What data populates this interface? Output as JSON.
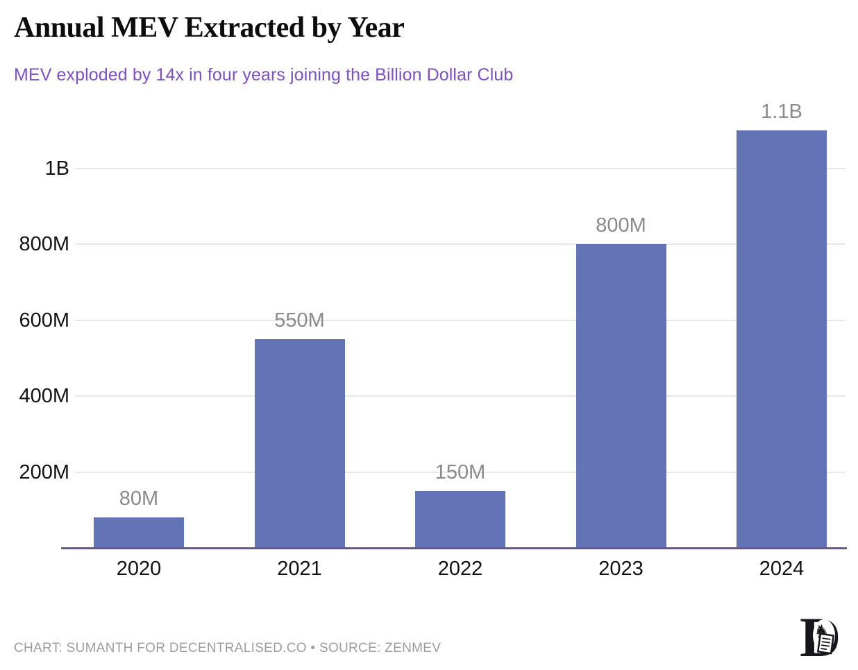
{
  "chart_data": {
    "type": "bar",
    "title": "Annual MEV Extracted by Year",
    "subtitle": "MEV exploded by 14x in four years joining the Billion Dollar Club",
    "categories": [
      "2020",
      "2021",
      "2022",
      "2023",
      "2024"
    ],
    "values": [
      80,
      550,
      150,
      800,
      1100
    ],
    "value_labels": [
      "80M",
      "550M",
      "150M",
      "800M",
      "1.1B"
    ],
    "values_unit_note": "values in millions (M), 1.1B = 1100M",
    "yticks": [
      {
        "value": 200,
        "label": "200M"
      },
      {
        "value": 400,
        "label": "400M"
      },
      {
        "value": 600,
        "label": "600M"
      },
      {
        "value": 800,
        "label": "800M"
      },
      {
        "value": 1000,
        "label": "1B"
      }
    ],
    "ylim": [
      0,
      1150
    ],
    "xlabel": "",
    "ylabel": "",
    "grid": true,
    "legend": false,
    "colors": {
      "title": "#0d0d0d",
      "subtitle": "#7e4fc7",
      "bar": "#6274b6",
      "value_label": "#8a8a8a",
      "tick_label": "#121212",
      "gridline": "#e8e8e8",
      "axis_line": "#6e5591",
      "footer_text": "#9c9ca5"
    }
  },
  "footer": {
    "credit": "CHART: SUMANTH FOR DECENTRALISED.CO • SOURCE: ZENMEV",
    "logo_name": "decentralised-logo"
  }
}
